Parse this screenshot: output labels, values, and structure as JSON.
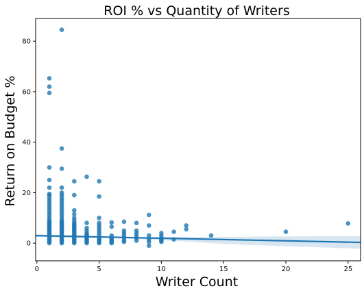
{
  "chart_data": {
    "type": "scatter",
    "title": "ROI % vs Quantity of Writers",
    "xlabel": "Writer Count",
    "ylabel": "Return on Budget %",
    "xlim": [
      -0.1,
      26
    ],
    "ylim": [
      -7,
      89
    ],
    "xticks": [
      0,
      5,
      10,
      15,
      20,
      25
    ],
    "yticks": [
      0,
      20,
      40,
      60,
      80
    ],
    "grid": false,
    "color": "#1f77b4",
    "points": [
      [
        1,
        0
      ],
      [
        1,
        0.5
      ],
      [
        1,
        1
      ],
      [
        1,
        1.5
      ],
      [
        1,
        2
      ],
      [
        1,
        2.5
      ],
      [
        1,
        3
      ],
      [
        1,
        3.5
      ],
      [
        1,
        4
      ],
      [
        1,
        4.5
      ],
      [
        1,
        5
      ],
      [
        1,
        5.5
      ],
      [
        1,
        6
      ],
      [
        1,
        6.5
      ],
      [
        1,
        7
      ],
      [
        1,
        7.5
      ],
      [
        1,
        8
      ],
      [
        1,
        8.5
      ],
      [
        1,
        9
      ],
      [
        1,
        10
      ],
      [
        1,
        11
      ],
      [
        1,
        12
      ],
      [
        1,
        13
      ],
      [
        1,
        14
      ],
      [
        1,
        15
      ],
      [
        1,
        16
      ],
      [
        1,
        17
      ],
      [
        1,
        18
      ],
      [
        1,
        19
      ],
      [
        1,
        19.5
      ],
      [
        1,
        22
      ],
      [
        1,
        25
      ],
      [
        1,
        30
      ],
      [
        1,
        59.5
      ],
      [
        1,
        62
      ],
      [
        1,
        65.3
      ],
      [
        2,
        0
      ],
      [
        2,
        0.5
      ],
      [
        2,
        1
      ],
      [
        2,
        1.5
      ],
      [
        2,
        2
      ],
      [
        2,
        2.5
      ],
      [
        2,
        3
      ],
      [
        2,
        3.5
      ],
      [
        2,
        4
      ],
      [
        2,
        4.5
      ],
      [
        2,
        5
      ],
      [
        2,
        5.5
      ],
      [
        2,
        6
      ],
      [
        2,
        6.5
      ],
      [
        2,
        7
      ],
      [
        2,
        7.5
      ],
      [
        2,
        8
      ],
      [
        2,
        8.5
      ],
      [
        2,
        9
      ],
      [
        2,
        10
      ],
      [
        2,
        11
      ],
      [
        2,
        12
      ],
      [
        2,
        13
      ],
      [
        2,
        14
      ],
      [
        2,
        15
      ],
      [
        2,
        16
      ],
      [
        2,
        17
      ],
      [
        2,
        18
      ],
      [
        2,
        19
      ],
      [
        2,
        20
      ],
      [
        2,
        22
      ],
      [
        2,
        29.5
      ],
      [
        2,
        37.5
      ],
      [
        2,
        84.5
      ],
      [
        3,
        0
      ],
      [
        3,
        0.5
      ],
      [
        3,
        1
      ],
      [
        3,
        1.5
      ],
      [
        3,
        2
      ],
      [
        3,
        2.5
      ],
      [
        3,
        3
      ],
      [
        3,
        3.5
      ],
      [
        3,
        4
      ],
      [
        3,
        4.5
      ],
      [
        3,
        5
      ],
      [
        3,
        5.5
      ],
      [
        3,
        6
      ],
      [
        3,
        6.5
      ],
      [
        3,
        7
      ],
      [
        3,
        7.5
      ],
      [
        3,
        8
      ],
      [
        3,
        9
      ],
      [
        3,
        10
      ],
      [
        3,
        11.5
      ],
      [
        3,
        13
      ],
      [
        3,
        19
      ],
      [
        3,
        24.5
      ],
      [
        4,
        0
      ],
      [
        4,
        0.5
      ],
      [
        4,
        1
      ],
      [
        4,
        1.5
      ],
      [
        4,
        2
      ],
      [
        4,
        2.5
      ],
      [
        4,
        3
      ],
      [
        4,
        3.5
      ],
      [
        4,
        4
      ],
      [
        4,
        5
      ],
      [
        4,
        6
      ],
      [
        4,
        8
      ],
      [
        4,
        26.3
      ],
      [
        5,
        0
      ],
      [
        5,
        0.5
      ],
      [
        5,
        1
      ],
      [
        5,
        1.5
      ],
      [
        5,
        2
      ],
      [
        5,
        3
      ],
      [
        5,
        4
      ],
      [
        5,
        5
      ],
      [
        5,
        6
      ],
      [
        5,
        7
      ],
      [
        5,
        8
      ],
      [
        5,
        10
      ],
      [
        5,
        18.5
      ],
      [
        5,
        24.5
      ],
      [
        6,
        0
      ],
      [
        6,
        0.5
      ],
      [
        6,
        1
      ],
      [
        6,
        1.5
      ],
      [
        6,
        2
      ],
      [
        6,
        3
      ],
      [
        6,
        6.5
      ],
      [
        6,
        8.2
      ],
      [
        7,
        0.5
      ],
      [
        7,
        1
      ],
      [
        7,
        2
      ],
      [
        7,
        3
      ],
      [
        7,
        4
      ],
      [
        7,
        5
      ],
      [
        7,
        8.5
      ],
      [
        8,
        1
      ],
      [
        8,
        2
      ],
      [
        8,
        3
      ],
      [
        8,
        4
      ],
      [
        8,
        5
      ],
      [
        8,
        8
      ],
      [
        9,
        -1
      ],
      [
        9,
        0.5
      ],
      [
        9,
        1.5
      ],
      [
        9,
        3
      ],
      [
        9,
        7
      ],
      [
        9,
        11.2
      ],
      [
        10,
        0.5
      ],
      [
        10,
        1
      ],
      [
        10,
        1.5
      ],
      [
        10,
        2
      ],
      [
        10,
        3
      ],
      [
        10,
        4
      ],
      [
        11,
        1.5
      ],
      [
        11,
        4.5
      ],
      [
        12,
        5.5
      ],
      [
        12,
        7
      ],
      [
        14,
        3
      ],
      [
        20,
        4.5
      ],
      [
        25,
        7.8
      ]
    ],
    "regression": {
      "x_start": -0.1,
      "x_end": 26,
      "y_start": 3.0,
      "y_end": 0.3,
      "ci_start": [
        2.5,
        3.5
      ],
      "ci_end": [
        -2.2,
        2.8
      ],
      "ci_knots": [
        [
          -0.1,
          2.5,
          3.5
        ],
        [
          3,
          2.2,
          2.9
        ],
        [
          6,
          1.9,
          2.4
        ],
        [
          10,
          1.2,
          2.4
        ],
        [
          15,
          -0.3,
          2.5
        ],
        [
          20,
          -1.2,
          2.7
        ],
        [
          26,
          -2.2,
          2.8
        ]
      ]
    }
  }
}
